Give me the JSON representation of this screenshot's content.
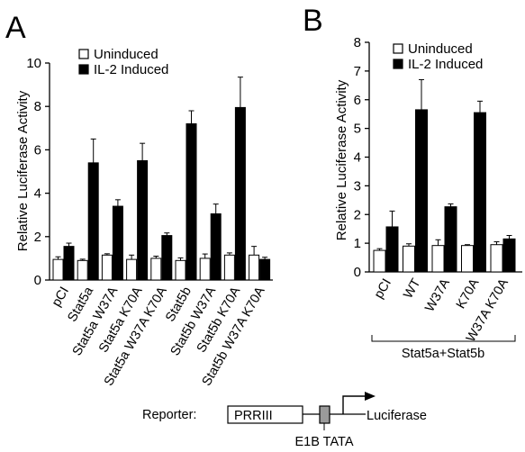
{
  "colors": {
    "uninduced": "#ffffff",
    "induced": "#000000",
    "stroke": "#000000",
    "tata_box": "#9a9a9a"
  },
  "chart_data": [
    {
      "type": "bar",
      "panel": "A",
      "ylabel": "Relative Luciferase Activity",
      "ylim": [
        0,
        10
      ],
      "yticks": [
        0,
        2,
        4,
        6,
        8,
        10
      ],
      "legend_position": "top-left",
      "categories": [
        "pCI",
        "Stat5a",
        "Stat5a W37A",
        "Stat5a K70A",
        "Stat5a W37A K70A",
        "Stat5b",
        "Stat5b W37A",
        "Stat5b K70A",
        "Stat5b W37A K70A"
      ],
      "series": [
        {
          "name": "Uninduced",
          "values": [
            0.95,
            0.9,
            1.15,
            0.95,
            1.0,
            0.9,
            1.0,
            1.15,
            1.15
          ],
          "errors": [
            0.12,
            0.06,
            0.06,
            0.2,
            0.1,
            0.12,
            0.2,
            0.1,
            0.4
          ]
        },
        {
          "name": "IL-2 Induced",
          "values": [
            1.55,
            5.4,
            3.4,
            5.5,
            2.05,
            7.2,
            3.05,
            7.95,
            0.95
          ],
          "errors": [
            0.15,
            1.1,
            0.3,
            0.8,
            0.12,
            0.6,
            0.45,
            1.4,
            0.1
          ]
        }
      ]
    },
    {
      "type": "bar",
      "panel": "B",
      "ylabel": "Relative Luciferase Activity",
      "ylim": [
        0,
        8
      ],
      "yticks": [
        0,
        1,
        2,
        3,
        4,
        5,
        6,
        7,
        8
      ],
      "legend_position": "top-left",
      "categories": [
        "pCI",
        "WT",
        "W37A",
        "K70A",
        "W37A K70A"
      ],
      "group_label": "Stat5a+Stat5b",
      "series": [
        {
          "name": "Uninduced",
          "values": [
            0.75,
            0.9,
            0.92,
            0.92,
            0.95
          ],
          "errors": [
            0.06,
            0.08,
            0.2,
            0.03,
            0.1
          ]
        },
        {
          "name": "IL-2 Induced",
          "values": [
            1.57,
            5.65,
            2.27,
            5.55,
            1.15
          ],
          "errors": [
            0.55,
            1.05,
            0.1,
            0.4,
            0.12
          ]
        }
      ]
    }
  ],
  "reporter": {
    "label": "Reporter:",
    "promoter": "PRRIII",
    "element": "E1B TATA",
    "gene": "Luciferase"
  }
}
